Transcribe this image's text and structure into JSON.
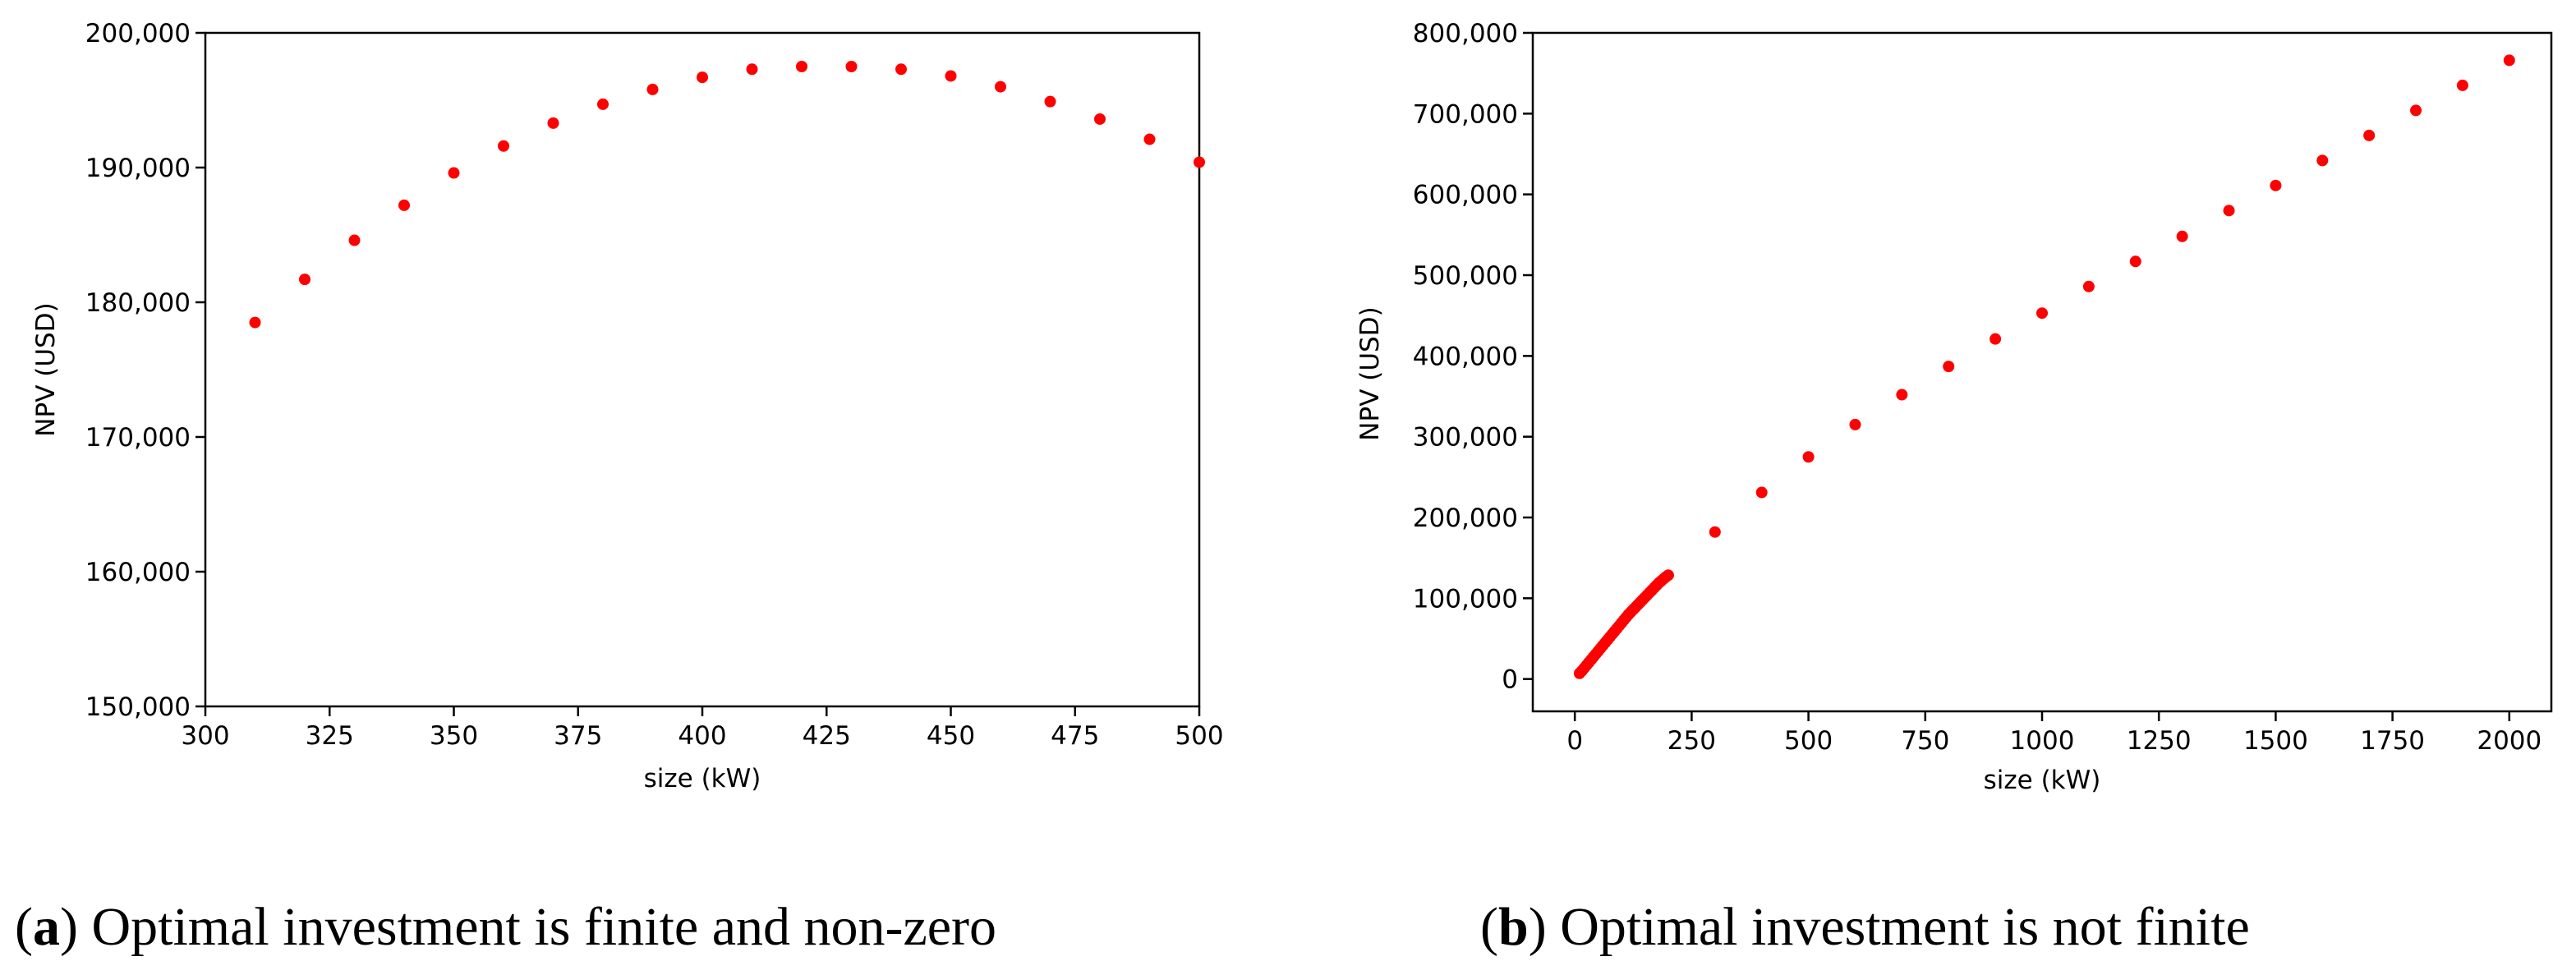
{
  "chart_data": [
    {
      "type": "scatter",
      "id": "a",
      "xlabel": "size (kW)",
      "ylabel": "NPV (USD)",
      "xlim": [
        300,
        500
      ],
      "ylim": [
        150000,
        200000
      ],
      "xticks": [
        "300",
        "325",
        "350",
        "375",
        "400",
        "425",
        "450",
        "475",
        "500"
      ],
      "yticks": [
        "150,000",
        "160,000",
        "170,000",
        "180,000",
        "190,000",
        "200,000"
      ],
      "point_color": "#ff0000",
      "series": [
        {
          "name": "NPV",
          "x": [
            310,
            320,
            330,
            340,
            350,
            360,
            370,
            380,
            390,
            400,
            410,
            420,
            430,
            440,
            450,
            460,
            470,
            480,
            490,
            500
          ],
          "y": [
            178500,
            181700,
            184600,
            187200,
            189600,
            191600,
            193300,
            194700,
            195800,
            196700,
            197300,
            197500,
            197500,
            197300,
            196800,
            196000,
            194900,
            193600,
            192100,
            190400
          ]
        }
      ],
      "caption_letter": "a",
      "caption_text": "Optimal investment is finite and non-zero"
    },
    {
      "type": "scatter",
      "id": "b",
      "xlabel": "size (kW)",
      "ylabel": "NPV (USD)",
      "xlim": [
        -90,
        2090
      ],
      "ylim": [
        -40000,
        800000
      ],
      "xticks": [
        "0",
        "250",
        "500",
        "750",
        "1000",
        "1250",
        "1500",
        "1750",
        "2000"
      ],
      "yticks": [
        "0",
        "100,000",
        "200,000",
        "300,000",
        "400,000",
        "500,000",
        "600,000",
        "700,000",
        "800,000"
      ],
      "point_color": "#ff0000",
      "series": [
        {
          "name": "NPV",
          "x": [
            10,
            15,
            20,
            25,
            30,
            35,
            40,
            45,
            50,
            55,
            60,
            65,
            70,
            75,
            80,
            85,
            90,
            95,
            100,
            105,
            110,
            115,
            120,
            125,
            130,
            135,
            140,
            145,
            150,
            155,
            160,
            165,
            170,
            175,
            180,
            185,
            190,
            195,
            200,
            300,
            400,
            500,
            600,
            700,
            800,
            900,
            1000,
            1100,
            1200,
            1300,
            1400,
            1500,
            1600,
            1700,
            1800,
            1900,
            2000
          ],
          "y": [
            7000,
            10000,
            13500,
            17000,
            20500,
            24000,
            27500,
            31000,
            34500,
            38000,
            41500,
            45000,
            48500,
            52000,
            55500,
            59000,
            62500,
            66000,
            69500,
            73000,
            76500,
            80000,
            83000,
            86000,
            89000,
            92000,
            95000,
            98000,
            101000,
            104000,
            107000,
            110000,
            113000,
            116000,
            119000,
            121500,
            124000,
            126500,
            128500,
            182000,
            231000,
            275000,
            315000,
            352000,
            387000,
            421000,
            453000,
            486000,
            517000,
            548000,
            580000,
            611000,
            642000,
            673000,
            704000,
            735000,
            766000
          ]
        }
      ],
      "caption_letter": "b",
      "caption_text": "Optimal investment is not finite"
    }
  ]
}
